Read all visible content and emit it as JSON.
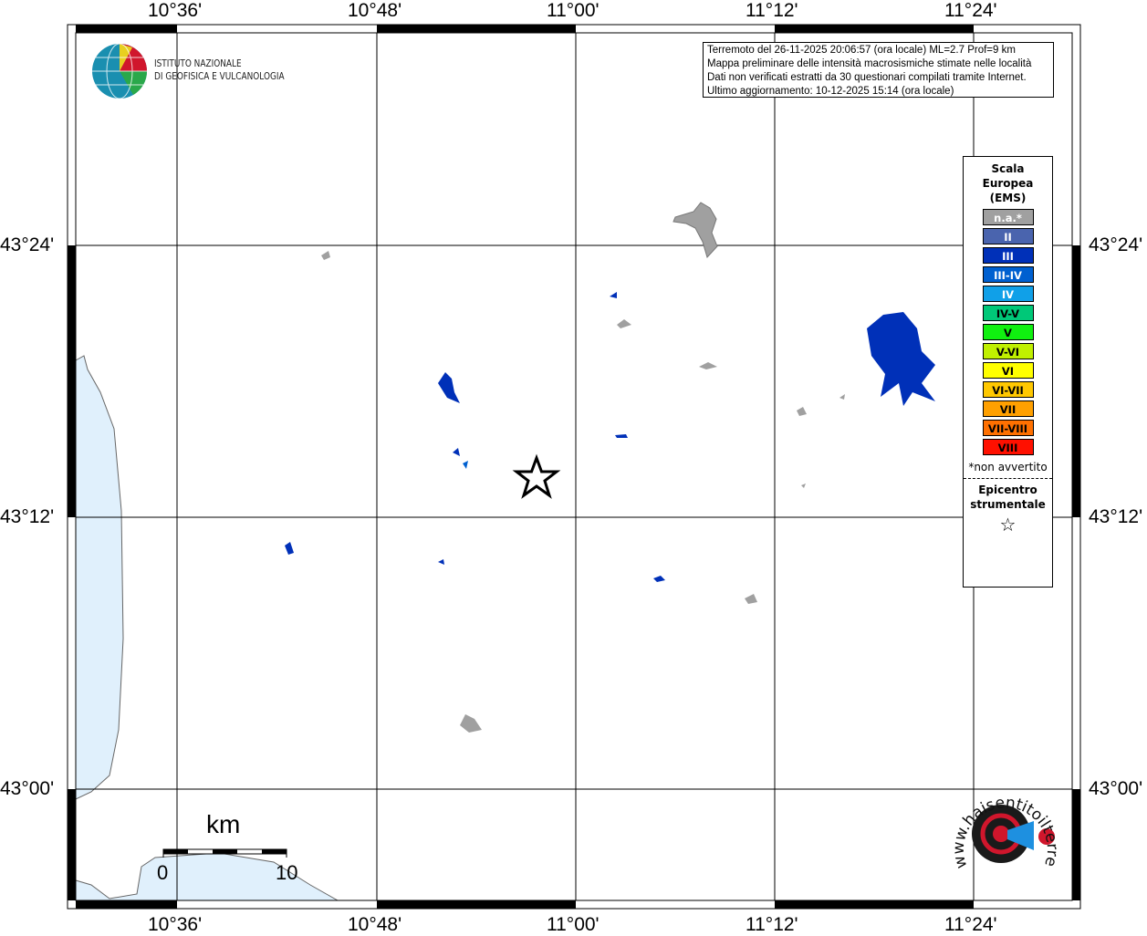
{
  "map": {
    "lon_labels": [
      "10°36'",
      "10°48'",
      "11°00'",
      "11°12'",
      "11°24'"
    ],
    "lat_labels": [
      "43°24'",
      "43°12'",
      "43°00'"
    ],
    "water_color": "#e0f0fc",
    "epicenter_symbol": "star"
  },
  "logo": {
    "line1": "ISTITUTO NAZIONALE",
    "line2": "DI GEOFISICA E VULCANOLOGIA"
  },
  "info": {
    "line1": "Terremoto del 26-11-2025 20:06:57 (ora locale) ML=2.7 Prof=9 km",
    "line2": "Mappa preliminare delle intensità macrosismiche stimate nelle località",
    "line3": "Dati non verificati estratti da 30 questionari compilati tramite Internet.",
    "line4": "Ultimo aggiornamento: 10-12-2025 15:14 (ora locale)"
  },
  "legend": {
    "title1": "Scala",
    "title2": "Europea",
    "title3": "(EMS)",
    "items": [
      {
        "label": "n.a.*",
        "color": "#a0a0a0",
        "text": "#fff"
      },
      {
        "label": "II",
        "color": "#4a64ae",
        "text": "#fff"
      },
      {
        "label": "III",
        "color": "#0030b8",
        "text": "#fff"
      },
      {
        "label": "III-IV",
        "color": "#0060d0",
        "text": "#fff"
      },
      {
        "label": "IV",
        "color": "#10a0e8",
        "text": "#fff"
      },
      {
        "label": "IV-V",
        "color": "#00c878",
        "text": "#000"
      },
      {
        "label": "V",
        "color": "#10f010",
        "text": "#000"
      },
      {
        "label": "V-VI",
        "color": "#c0f000",
        "text": "#000"
      },
      {
        "label": "VI",
        "color": "#ffff00",
        "text": "#000"
      },
      {
        "label": "VI-VII",
        "color": "#ffc800",
        "text": "#000"
      },
      {
        "label": "VII",
        "color": "#ffa000",
        "text": "#000"
      },
      {
        "label": "VII-VIII",
        "color": "#ff7000",
        "text": "#000"
      },
      {
        "label": "VIII",
        "color": "#ff1000",
        "text": "#000"
      }
    ],
    "note": "*non avvertito",
    "epi1": "Epicentro",
    "epi2": "strumentale"
  },
  "scalebar": {
    "unit": "km",
    "start": "0",
    "end": "10"
  },
  "badge": {
    "text": "www.haisentitoilterremoto.it"
  }
}
